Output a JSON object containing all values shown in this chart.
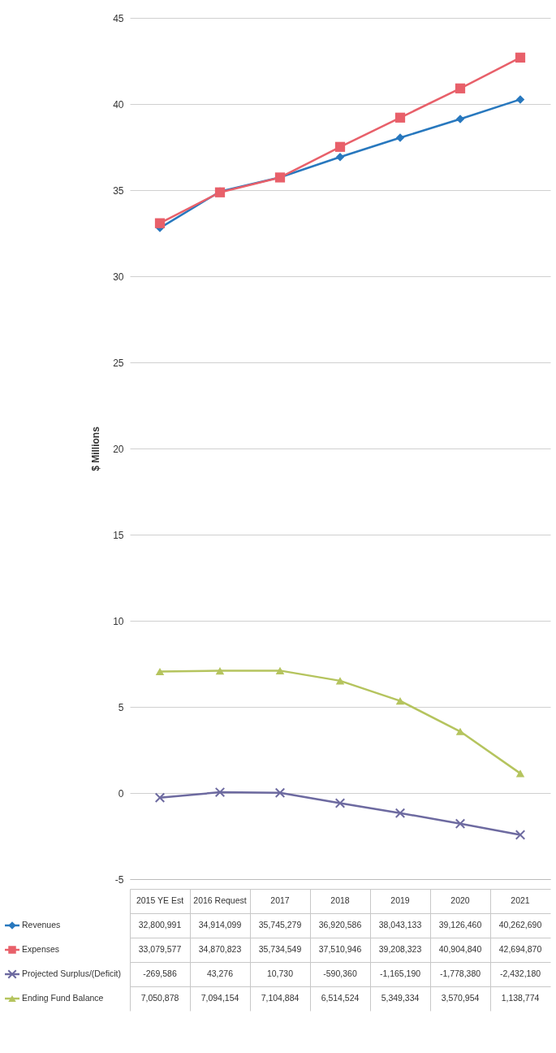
{
  "chart_data": {
    "type": "line",
    "ylabel": "$ Millions",
    "categories": [
      "2015 YE Est",
      "2016 Request",
      "2017",
      "2018",
      "2019",
      "2020",
      "2021"
    ],
    "ylim": [
      -5,
      45
    ],
    "yticks": [
      -5,
      0,
      5,
      10,
      15,
      20,
      25,
      30,
      35,
      40,
      45
    ],
    "grid": "y",
    "legend": "bottom left",
    "series": [
      {
        "name": "Revenues",
        "color": "#2878be",
        "marker": "diamond",
        "values": [
          32.800991,
          34.914099,
          35.745279,
          36.920586,
          38.043133,
          39.12646,
          40.26269
        ]
      },
      {
        "name": "Expenses",
        "color": "#e8606a",
        "marker": "square",
        "values": [
          33.079577,
          34.870823,
          35.734549,
          37.510946,
          39.208323,
          40.90484,
          42.69487
        ]
      },
      {
        "name": "Projected Surplus/(Deficit)",
        "color": "#6d6aa0",
        "marker": "cross",
        "values": [
          -0.269586,
          0.043276,
          0.01073,
          -0.59036,
          -1.16519,
          -1.77838,
          -2.43218
        ]
      },
      {
        "name": "Ending Fund Balance",
        "color": "#b5c45e",
        "marker": "triangle",
        "values": [
          7.050878,
          7.094154,
          7.104884,
          6.514524,
          5.349334,
          3.570954,
          1.138774
        ]
      }
    ],
    "annotations": [
      "32,800,991",
      "34,914,099",
      "35,745,279",
      "36,920,586",
      "38,043,133",
      "39,126,460",
      "40,262,690",
      "33,079,577",
      "34,870,823",
      "35,734,549",
      "37,510,946",
      "39,208,323",
      "40,904,840",
      "42,694,870",
      "-269,586",
      "43,276",
      "10,730",
      "-590,360",
      "-1,165,190",
      "-1,778,380",
      "-2,432,180",
      "7,050,878",
      "7,094,154",
      "7,104,884",
      "6,514,524",
      "5,349,334",
      "3,570,954",
      "1,138,774"
    ]
  }
}
